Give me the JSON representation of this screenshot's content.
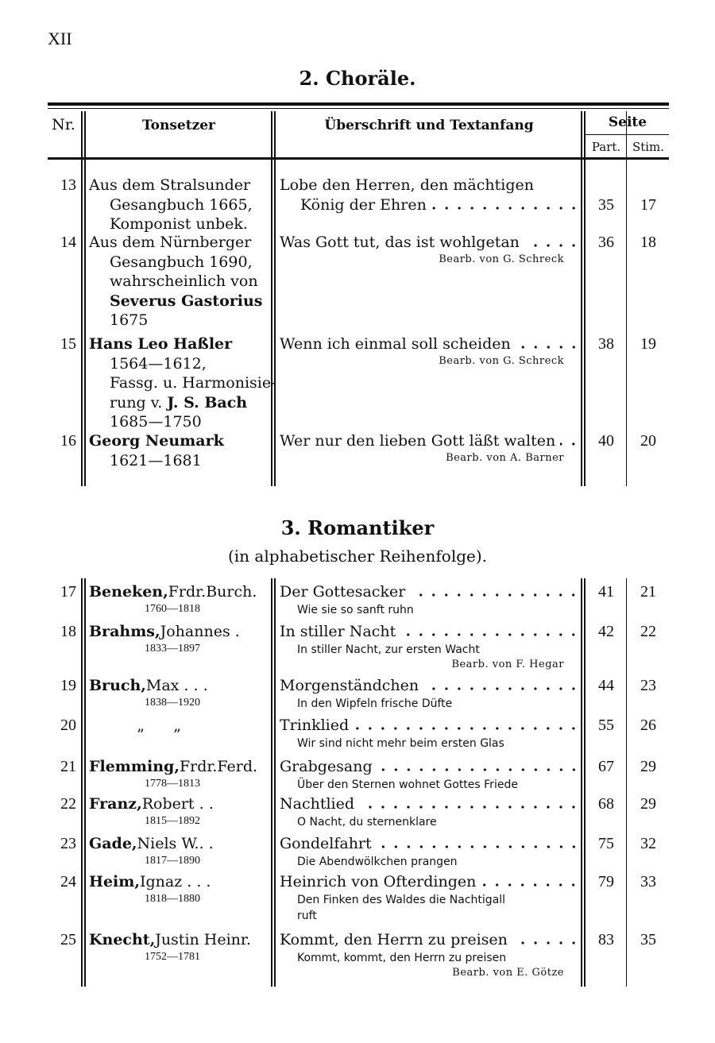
{
  "page_number": "XII",
  "section2": {
    "title": "2. Choräle.",
    "headers": {
      "nr": "Nr.",
      "composer": "Tonsetzer",
      "title": "Überschrift und Textanfang",
      "page": "Seite",
      "part": "Part.",
      "stim": "Stim."
    },
    "rows": [
      {
        "nr": "13",
        "composer": [
          [
            {
              "t": "Aus dem Stralsunder"
            }
          ],
          [
            {
              "t": "Gesangbuch 1665,"
            }
          ],
          [
            {
              "t": "Komponist unbek."
            }
          ]
        ],
        "title": [
          "Lobe den Herren, den mächtigen",
          "König der Ehren"
        ],
        "arranger": "",
        "part": "35",
        "stim": "17"
      },
      {
        "nr": "14",
        "composer": [
          [
            {
              "t": "Aus dem Nürnberger"
            }
          ],
          [
            {
              "t": "Gesangbuch 1690,"
            }
          ],
          [
            {
              "t": "wahrscheinlich von"
            }
          ],
          [
            {
              "t": "Severus Gastorius",
              "b": true
            }
          ],
          [
            {
              "t": "1675"
            }
          ]
        ],
        "title": [
          "Was Gott tut, das ist wohlgetan"
        ],
        "arranger": "Bearb. von G. Schreck",
        "part": "36",
        "stim": "18"
      },
      {
        "nr": "15",
        "composer": [
          [
            {
              "t": "Hans Leo Haßler",
              "b": true
            }
          ],
          [
            {
              "t": "1564—1612,"
            }
          ],
          [
            {
              "t": "Fassg. u. Harmonisie-"
            }
          ],
          [
            {
              "t": "rung v. "
            },
            {
              "t": "J. S. Bach",
              "b": true
            }
          ],
          [
            {
              "t": "1685—1750"
            }
          ]
        ],
        "title": [
          "Wenn ich einmal soll scheiden"
        ],
        "arranger": "Bearb. von G. Schreck",
        "part": "38",
        "stim": "19"
      },
      {
        "nr": "16",
        "composer": [
          [
            {
              "t": "Georg Neumark",
              "b": true
            }
          ],
          [
            {
              "t": "1621—1681"
            }
          ]
        ],
        "title": [
          "Wer nur den lieben Gott läßt walten"
        ],
        "arranger": "Bearb. von A. Barner",
        "part": "40",
        "stim": "20"
      }
    ]
  },
  "section3": {
    "title": "3. Romantiker",
    "subtitle": "(in alphabetischer Reihenfolge).",
    "rows": [
      {
        "nr": "17",
        "surname": "Beneken,",
        "given": "Frdr.Burch.",
        "dates": "1760—1818",
        "title": "Der Gottesacker",
        "subtitle": "Wie sie so sanft ruhn",
        "arranger": "",
        "part": "41",
        "stim": "21"
      },
      {
        "nr": "18",
        "surname": "Brahms,",
        "given": "Johannes .",
        "dates": "1833—1897",
        "title": "In stiller Nacht",
        "subtitle": "In stiller Nacht, zur ersten Wacht",
        "arranger": "Bearb. von F. Hegar",
        "part": "42",
        "stim": "22"
      },
      {
        "nr": "19",
        "surname": "Bruch,",
        "given": "Max . . .",
        "dates": "1838—1920",
        "title": "Morgenständchen",
        "subtitle": "In den Wipfeln frische Düfte",
        "arranger": "",
        "part": "44",
        "stim": "23"
      },
      {
        "nr": "20",
        "surname": "",
        "given": "”      ”",
        "dates": "",
        "title": "Trinklied",
        "subtitle": "Wir sind nicht mehr beim ersten Glas",
        "arranger": "",
        "part": "55",
        "stim": "26"
      },
      {
        "nr": "21",
        "surname": "Flemming,",
        "given": "Frdr.Ferd.",
        "dates": "1778—1813",
        "title": "Grabgesang",
        "subtitle": "Über den Sternen wohnet Gottes Friede",
        "arranger": "",
        "part": "67",
        "stim": "29"
      },
      {
        "nr": "22",
        "surname": "Franz,",
        "given": "Robert . .",
        "dates": "1815—1892",
        "title": "Nachtlied",
        "subtitle": "O Nacht, du sternenklare",
        "arranger": "",
        "part": "68",
        "stim": "29"
      },
      {
        "nr": "23",
        "surname": "Gade,",
        "given": "Niels W.. .",
        "dates": "1817—1890",
        "title": "Gondelfahrt",
        "subtitle": "Die Abendwölkchen prangen",
        "arranger": "",
        "part": "75",
        "stim": "32"
      },
      {
        "nr": "24",
        "surname": "Heim,",
        "given": "Ignaz . . .",
        "dates": "1818—1880",
        "title": "Heinrich von Ofterdingen",
        "subtitle": "Den Finken des Waldes die Nachtigall\nruft",
        "arranger": "",
        "part": "79",
        "stim": "33"
      },
      {
        "nr": "25",
        "surname": "Knecht,",
        "given": "Justin Heinr.",
        "dates": "1752—1781",
        "title": "Kommt, den Herrn zu preisen",
        "subtitle": "Kommt, kommt, den Herrn zu preisen",
        "arranger": "Bearb. von E. Götze",
        "part": "83",
        "stim": "35"
      }
    ]
  }
}
